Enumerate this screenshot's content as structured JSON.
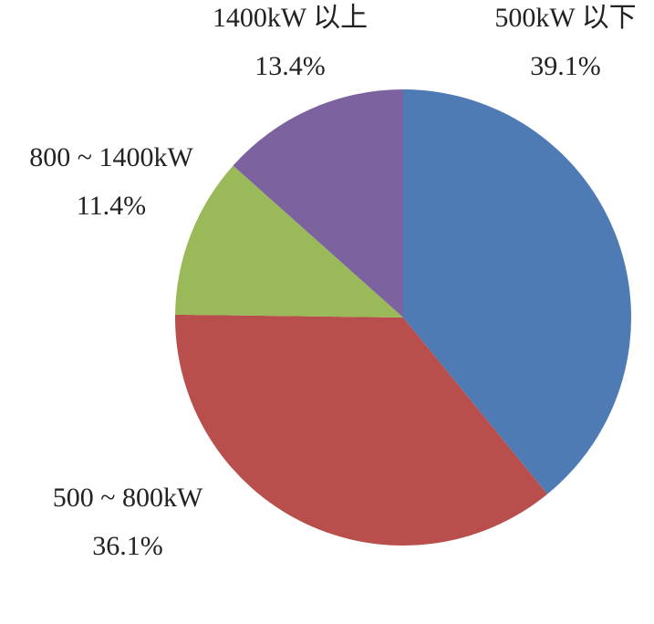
{
  "chart_data": {
    "type": "pie",
    "categories": [
      "500kW 以下",
      "500 ~ 800kW",
      "800 ~ 1400kW",
      "1400kW 以上"
    ],
    "values": [
      39.1,
      36.1,
      11.4,
      13.4
    ],
    "value_labels": [
      "39.1%",
      "36.1%",
      "11.4%",
      "13.4%"
    ],
    "colors": [
      "#4f7bb5",
      "#b94f4c",
      "#9aba59",
      "#7c63a0"
    ]
  }
}
